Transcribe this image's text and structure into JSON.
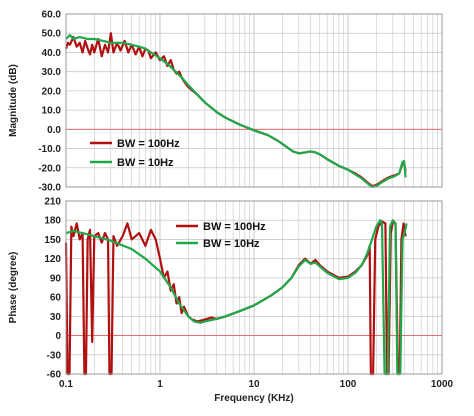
{
  "colors": {
    "bw100": "#b01010",
    "bw10": "#1fa84a",
    "zero_line": "#e07070",
    "grid": "#c8c8c8",
    "frame": "#9a9a9a"
  },
  "chart_data": [
    {
      "type": "line",
      "ylabel": "Magnitude (dB)",
      "xscale": "log",
      "xlim": [
        0.1,
        1000
      ],
      "ylim": [
        -30,
        60
      ],
      "yticks": [
        60,
        50,
        40,
        30,
        20,
        10,
        0,
        -10,
        -20,
        -30
      ],
      "ytick_labels": [
        "60.0",
        "50.0",
        "40.0",
        "30.0",
        "20.0",
        "10.0",
        "0.0",
        "-10.0",
        "-20.0",
        "-30.0"
      ],
      "legend": [
        {
          "label": "BW = 100Hz",
          "color": "#b01010"
        },
        {
          "label": "BW = 10Hz",
          "color": "#1fa84a"
        }
      ],
      "series": [
        {
          "name": "BW = 100Hz",
          "color": "#b01010",
          "points": [
            [
              0.1,
              42
            ],
            [
              0.105,
              45
            ],
            [
              0.11,
              44
            ],
            [
              0.12,
              48
            ],
            [
              0.13,
              43
            ],
            [
              0.14,
              45
            ],
            [
              0.15,
              40
            ],
            [
              0.16,
              46
            ],
            [
              0.17,
              42
            ],
            [
              0.18,
              39
            ],
            [
              0.19,
              44
            ],
            [
              0.2,
              40
            ],
            [
              0.22,
              47
            ],
            [
              0.24,
              38
            ],
            [
              0.26,
              44
            ],
            [
              0.28,
              40
            ],
            [
              0.3,
              50
            ],
            [
              0.32,
              40
            ],
            [
              0.35,
              45
            ],
            [
              0.38,
              41
            ],
            [
              0.42,
              46
            ],
            [
              0.46,
              40
            ],
            [
              0.5,
              44
            ],
            [
              0.55,
              39
            ],
            [
              0.6,
              43
            ],
            [
              0.65,
              38
            ],
            [
              0.7,
              42
            ],
            [
              0.75,
              41
            ],
            [
              0.8,
              37
            ],
            [
              0.9,
              40
            ],
            [
              1.0,
              36
            ],
            [
              1.1,
              38
            ],
            [
              1.2,
              33
            ],
            [
              1.3,
              36
            ],
            [
              1.4,
              31
            ],
            [
              1.5,
              29
            ],
            [
              1.6,
              30
            ],
            [
              1.7,
              27
            ],
            [
              1.8,
              25
            ],
            [
              2,
              22
            ],
            [
              2.5,
              18
            ],
            [
              3,
              14
            ],
            [
              4,
              9
            ],
            [
              5,
              6
            ],
            [
              7,
              2.5
            ],
            [
              10,
              -0.5
            ],
            [
              14,
              -3
            ],
            [
              18,
              -6
            ],
            [
              22,
              -9
            ],
            [
              26,
              -11.5
            ],
            [
              30,
              -12.5
            ],
            [
              35,
              -12
            ],
            [
              40,
              -11.5
            ],
            [
              45,
              -12
            ],
            [
              50,
              -13
            ],
            [
              60,
              -15.5
            ],
            [
              80,
              -19
            ],
            [
              100,
              -21
            ],
            [
              120,
              -23
            ],
            [
              140,
              -25
            ],
            [
              160,
              -27.5
            ],
            [
              180,
              -29.5
            ],
            [
              200,
              -29
            ],
            [
              230,
              -27
            ],
            [
              270,
              -25
            ],
            [
              310,
              -24
            ],
            [
              350,
              -23
            ],
            [
              380,
              -18
            ],
            [
              395,
              -17.5
            ],
            [
              410,
              -22
            ]
          ]
        },
        {
          "name": "BW = 10Hz",
          "color": "#1fa84a",
          "points": [
            [
              0.1,
              47
            ],
            [
              0.11,
              49
            ],
            [
              0.12,
              47
            ],
            [
              0.14,
              48
            ],
            [
              0.17,
              47
            ],
            [
              0.2,
              47
            ],
            [
              0.25,
              46
            ],
            [
              0.3,
              45
            ],
            [
              0.4,
              45
            ],
            [
              0.5,
              44
            ],
            [
              0.6,
              43
            ],
            [
              0.7,
              42
            ],
            [
              0.8,
              40
            ],
            [
              1.0,
              37
            ],
            [
              1.2,
              34
            ],
            [
              1.4,
              31
            ],
            [
              1.7,
              27
            ],
            [
              2,
              23
            ],
            [
              2.5,
              18
            ],
            [
              3,
              14
            ],
            [
              4,
              9
            ],
            [
              5,
              6
            ],
            [
              7,
              2.5
            ],
            [
              10,
              -0.5
            ],
            [
              14,
              -3
            ],
            [
              18,
              -6
            ],
            [
              22,
              -9
            ],
            [
              26,
              -11.5
            ],
            [
              30,
              -12.5
            ],
            [
              35,
              -12
            ],
            [
              40,
              -11.5
            ],
            [
              45,
              -12
            ],
            [
              50,
              -13
            ],
            [
              60,
              -15.5
            ],
            [
              80,
              -19
            ],
            [
              100,
              -21
            ],
            [
              120,
              -23.5
            ],
            [
              140,
              -25.5
            ],
            [
              160,
              -28
            ],
            [
              180,
              -30
            ],
            [
              200,
              -29.5
            ],
            [
              230,
              -27.5
            ],
            [
              270,
              -25.5
            ],
            [
              310,
              -24.5
            ],
            [
              350,
              -23
            ],
            [
              380,
              -17
            ],
            [
              395,
              -16.5
            ],
            [
              410,
              -25
            ]
          ]
        }
      ]
    },
    {
      "type": "line",
      "xlabel": "Frequency (KHz)",
      "ylabel": "Phase (degree)",
      "xscale": "log",
      "xlim": [
        0.1,
        1000
      ],
      "ylim": [
        -60,
        210
      ],
      "yticks": [
        210,
        180,
        150,
        120,
        90,
        60,
        30,
        0,
        -30,
        -60
      ],
      "ytick_labels": [
        "210",
        "180",
        "150",
        "120",
        "90",
        "60",
        "30",
        "0",
        "-30",
        "-60"
      ],
      "xtick_labels": [
        "0.1",
        "1",
        "10",
        "100",
        "1000"
      ],
      "legend": [
        {
          "label": "BW = 100Hz",
          "color": "#b01010"
        },
        {
          "label": "BW = 10Hz",
          "color": "#1fa84a"
        }
      ],
      "series": [
        {
          "name": "BW = 100Hz",
          "color": "#b01010",
          "points": [
            [
              0.1,
              145
            ],
            [
              0.104,
              -60
            ],
            [
              0.109,
              -60
            ],
            [
              0.114,
              170
            ],
            [
              0.12,
              155
            ],
            [
              0.13,
              175
            ],
            [
              0.14,
              150
            ],
            [
              0.15,
              160
            ],
            [
              0.157,
              -60
            ],
            [
              0.163,
              -60
            ],
            [
              0.17,
              150
            ],
            [
              0.18,
              165
            ],
            [
              0.19,
              -10
            ],
            [
              0.2,
              155
            ],
            [
              0.22,
              160
            ],
            [
              0.24,
              145
            ],
            [
              0.26,
              160
            ],
            [
              0.28,
              150
            ],
            [
              0.29,
              -60
            ],
            [
              0.305,
              -60
            ],
            [
              0.32,
              155
            ],
            [
              0.35,
              140
            ],
            [
              0.4,
              155
            ],
            [
              0.45,
              175
            ],
            [
              0.5,
              150
            ],
            [
              0.6,
              160
            ],
            [
              0.7,
              140
            ],
            [
              0.8,
              165
            ],
            [
              0.9,
              150
            ],
            [
              1.0,
              120
            ],
            [
              1.1,
              90
            ],
            [
              1.2,
              100
            ],
            [
              1.3,
              70
            ],
            [
              1.4,
              80
            ],
            [
              1.5,
              50
            ],
            [
              1.6,
              60
            ],
            [
              1.7,
              35
            ],
            [
              1.8,
              45
            ],
            [
              2,
              30
            ],
            [
              2.2,
              25
            ],
            [
              2.5,
              22
            ],
            [
              3,
              25
            ],
            [
              3.5,
              28
            ],
            [
              4,
              26
            ],
            [
              5,
              30
            ],
            [
              7,
              38
            ],
            [
              10,
              47
            ],
            [
              15,
              62
            ],
            [
              20,
              75
            ],
            [
              25,
              90
            ],
            [
              30,
              110
            ],
            [
              35,
              120
            ],
            [
              40,
              112
            ],
            [
              45,
              118
            ],
            [
              50,
              110
            ],
            [
              60,
              100
            ],
            [
              80,
              90
            ],
            [
              100,
              92
            ],
            [
              120,
              100
            ],
            [
              140,
              110
            ],
            [
              160,
              125
            ],
            [
              170,
              140
            ],
            [
              175,
              -60
            ],
            [
              185,
              -60
            ],
            [
              195,
              150
            ],
            [
              210,
              170
            ],
            [
              230,
              178
            ],
            [
              250,
              175
            ],
            [
              260,
              -60
            ],
            [
              270,
              -60
            ],
            [
              285,
              160
            ],
            [
              300,
              178
            ],
            [
              320,
              175
            ],
            [
              340,
              -60
            ],
            [
              355,
              -60
            ],
            [
              370,
              150
            ],
            [
              390,
              175
            ],
            [
              410,
              155
            ]
          ]
        },
        {
          "name": "BW = 10Hz",
          "color": "#1fa84a",
          "points": [
            [
              0.1,
              160
            ],
            [
              0.12,
              163
            ],
            [
              0.15,
              160
            ],
            [
              0.2,
              155
            ],
            [
              0.3,
              148
            ],
            [
              0.5,
              135
            ],
            [
              0.7,
              120
            ],
            [
              1.0,
              100
            ],
            [
              1.3,
              75
            ],
            [
              1.6,
              50
            ],
            [
              2,
              30
            ],
            [
              2.3,
              22
            ],
            [
              2.7,
              20
            ],
            [
              3,
              22
            ],
            [
              4,
              26
            ],
            [
              5,
              30
            ],
            [
              7,
              38
            ],
            [
              10,
              47
            ],
            [
              15,
              62
            ],
            [
              20,
              75
            ],
            [
              25,
              90
            ],
            [
              30,
              108
            ],
            [
              35,
              118
            ],
            [
              40,
              112
            ],
            [
              45,
              114
            ],
            [
              50,
              108
            ],
            [
              60,
              98
            ],
            [
              80,
              88
            ],
            [
              100,
              90
            ],
            [
              120,
              98
            ],
            [
              140,
              110
            ],
            [
              160,
              128
            ],
            [
              180,
              150
            ],
            [
              200,
              170
            ],
            [
              220,
              180
            ],
            [
              230,
              175
            ],
            [
              245,
              -60
            ],
            [
              265,
              -60
            ],
            [
              280,
              170
            ],
            [
              300,
              180
            ],
            [
              320,
              175
            ],
            [
              335,
              -60
            ],
            [
              360,
              -60
            ],
            [
              380,
              150
            ],
            [
              400,
              160
            ],
            [
              420,
              175
            ]
          ]
        }
      ]
    }
  ]
}
